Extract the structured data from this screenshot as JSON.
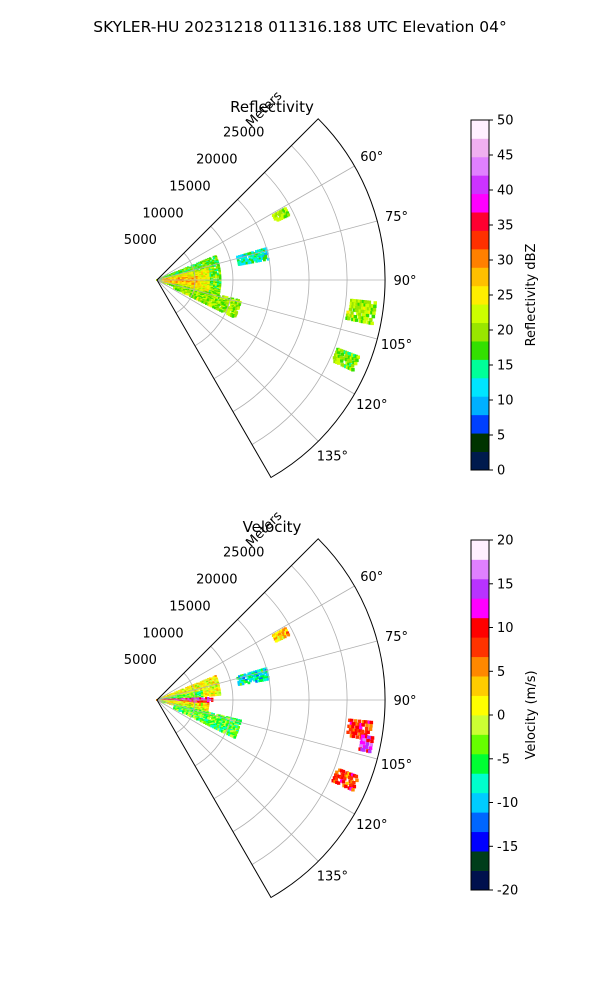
{
  "suptitle": "SKYLER-HU  20231218  011316.188 UTC Elevation 04°",
  "chart_data": [
    {
      "type": "polar-sector",
      "title": "Reflectivity",
      "range_label": "Meters",
      "theta_range_deg": [
        45,
        150
      ],
      "r_max_m": 30000,
      "r_ticks": [
        "5000",
        "10000",
        "15000",
        "20000",
        "25000"
      ],
      "r_tick_values": [
        5000,
        10000,
        15000,
        20000,
        25000
      ],
      "theta_ticks": [
        "60°",
        "75°",
        "90°",
        "105°",
        "120°",
        "135°"
      ],
      "theta_tick_values": [
        60,
        75,
        90,
        105,
        120,
        135
      ],
      "grid": true,
      "colorbar": {
        "label": "Reflectivity dBZ",
        "min": 0,
        "max": 50,
        "ticks": [
          "0",
          "5",
          "10",
          "15",
          "20",
          "25",
          "30",
          "35",
          "40",
          "45",
          "50"
        ],
        "tick_values": [
          0,
          5,
          10,
          15,
          20,
          25,
          30,
          35,
          40,
          45,
          50
        ],
        "colors": [
          "#001a4d",
          "#003300",
          "#0040ff",
          "#00b0ff",
          "#00e5ff",
          "#00ff99",
          "#33e000",
          "#99e600",
          "#ccff00",
          "#ffee00",
          "#ffc000",
          "#ff8000",
          "#ff3000",
          "#ff0030",
          "#ff00ff",
          "#cc33ff",
          "#e080ff",
          "#f0b0f0",
          "#fff0ff"
        ]
      },
      "echoes": [
        {
          "theta": [
            68,
            110
          ],
          "r": [
            0,
            8500
          ],
          "value": 18
        },
        {
          "theta": [
            78,
            104
          ],
          "r": [
            800,
            7000
          ],
          "value": 24
        },
        {
          "theta": [
            86,
            96
          ],
          "r": [
            800,
            5500
          ],
          "value": 28
        },
        {
          "theta": [
            104,
            116
          ],
          "r": [
            2500,
            11500
          ],
          "value": 20
        },
        {
          "theta": [
            74,
            80
          ],
          "r": [
            11000,
            15000
          ],
          "value": 14
        },
        {
          "theta": [
            61,
            64
          ],
          "r": [
            17500,
            19500
          ],
          "value": 20
        },
        {
          "theta": [
            96,
            102
          ],
          "r": [
            25500,
            29000
          ],
          "value": 20
        },
        {
          "theta": [
            111,
            115
          ],
          "r": [
            25500,
            28500
          ],
          "value": 19
        }
      ]
    },
    {
      "type": "polar-sector",
      "title": "Velocity",
      "range_label": "Meters",
      "theta_range_deg": [
        45,
        150
      ],
      "r_max_m": 30000,
      "r_ticks": [
        "5000",
        "10000",
        "15000",
        "20000",
        "25000"
      ],
      "r_tick_values": [
        5000,
        10000,
        15000,
        20000,
        25000
      ],
      "theta_ticks": [
        "60°",
        "75°",
        "90°",
        "105°",
        "120°",
        "135°"
      ],
      "theta_tick_values": [
        60,
        75,
        90,
        105,
        120,
        135
      ],
      "grid": true,
      "colorbar": {
        "label": "Velocity (m/s)",
        "min": -20,
        "max": 20,
        "ticks": [
          "-20",
          "-15",
          "-10",
          "-5",
          "0",
          "5",
          "10",
          "15",
          "20"
        ],
        "tick_values": [
          -20,
          -15,
          -10,
          -5,
          0,
          5,
          10,
          15,
          20
        ],
        "colors": [
          "#00104d",
          "#003d1a",
          "#0000ff",
          "#0066ff",
          "#00ccff",
          "#00ffcc",
          "#00ff33",
          "#66ff00",
          "#ccff33",
          "#ffff00",
          "#ffcc00",
          "#ff8800",
          "#ff3300",
          "#ff0000",
          "#ff00ff",
          "#b833ff",
          "#e080ff",
          "#fff0ff"
        ]
      },
      "echoes": [
        {
          "theta": [
            68,
            86
          ],
          "r": [
            0,
            8500
          ],
          "value": 1
        },
        {
          "theta": [
            80,
            88
          ],
          "r": [
            500,
            6000
          ],
          "value": -4
        },
        {
          "theta": [
            88,
            91
          ],
          "r": [
            500,
            7500
          ],
          "value": 13
        },
        {
          "theta": [
            91,
            95
          ],
          "r": [
            500,
            7000
          ],
          "value": 9
        },
        {
          "theta": [
            95,
            106
          ],
          "r": [
            500,
            7000
          ],
          "value": 1
        },
        {
          "theta": [
            104,
            116
          ],
          "r": [
            2500,
            11500
          ],
          "value": -4
        },
        {
          "theta": [
            74,
            80
          ],
          "r": [
            11000,
            15000
          ],
          "value": -8
        },
        {
          "theta": [
            61,
            64
          ],
          "r": [
            17500,
            19500
          ],
          "value": 3
        },
        {
          "theta": [
            96,
            101
          ],
          "r": [
            25500,
            28500
          ],
          "value": 9
        },
        {
          "theta": [
            100,
            104
          ],
          "r": [
            27500,
            29000
          ],
          "value": 14
        },
        {
          "theta": [
            111,
            115
          ],
          "r": [
            25500,
            28500
          ],
          "value": 8
        }
      ]
    }
  ]
}
